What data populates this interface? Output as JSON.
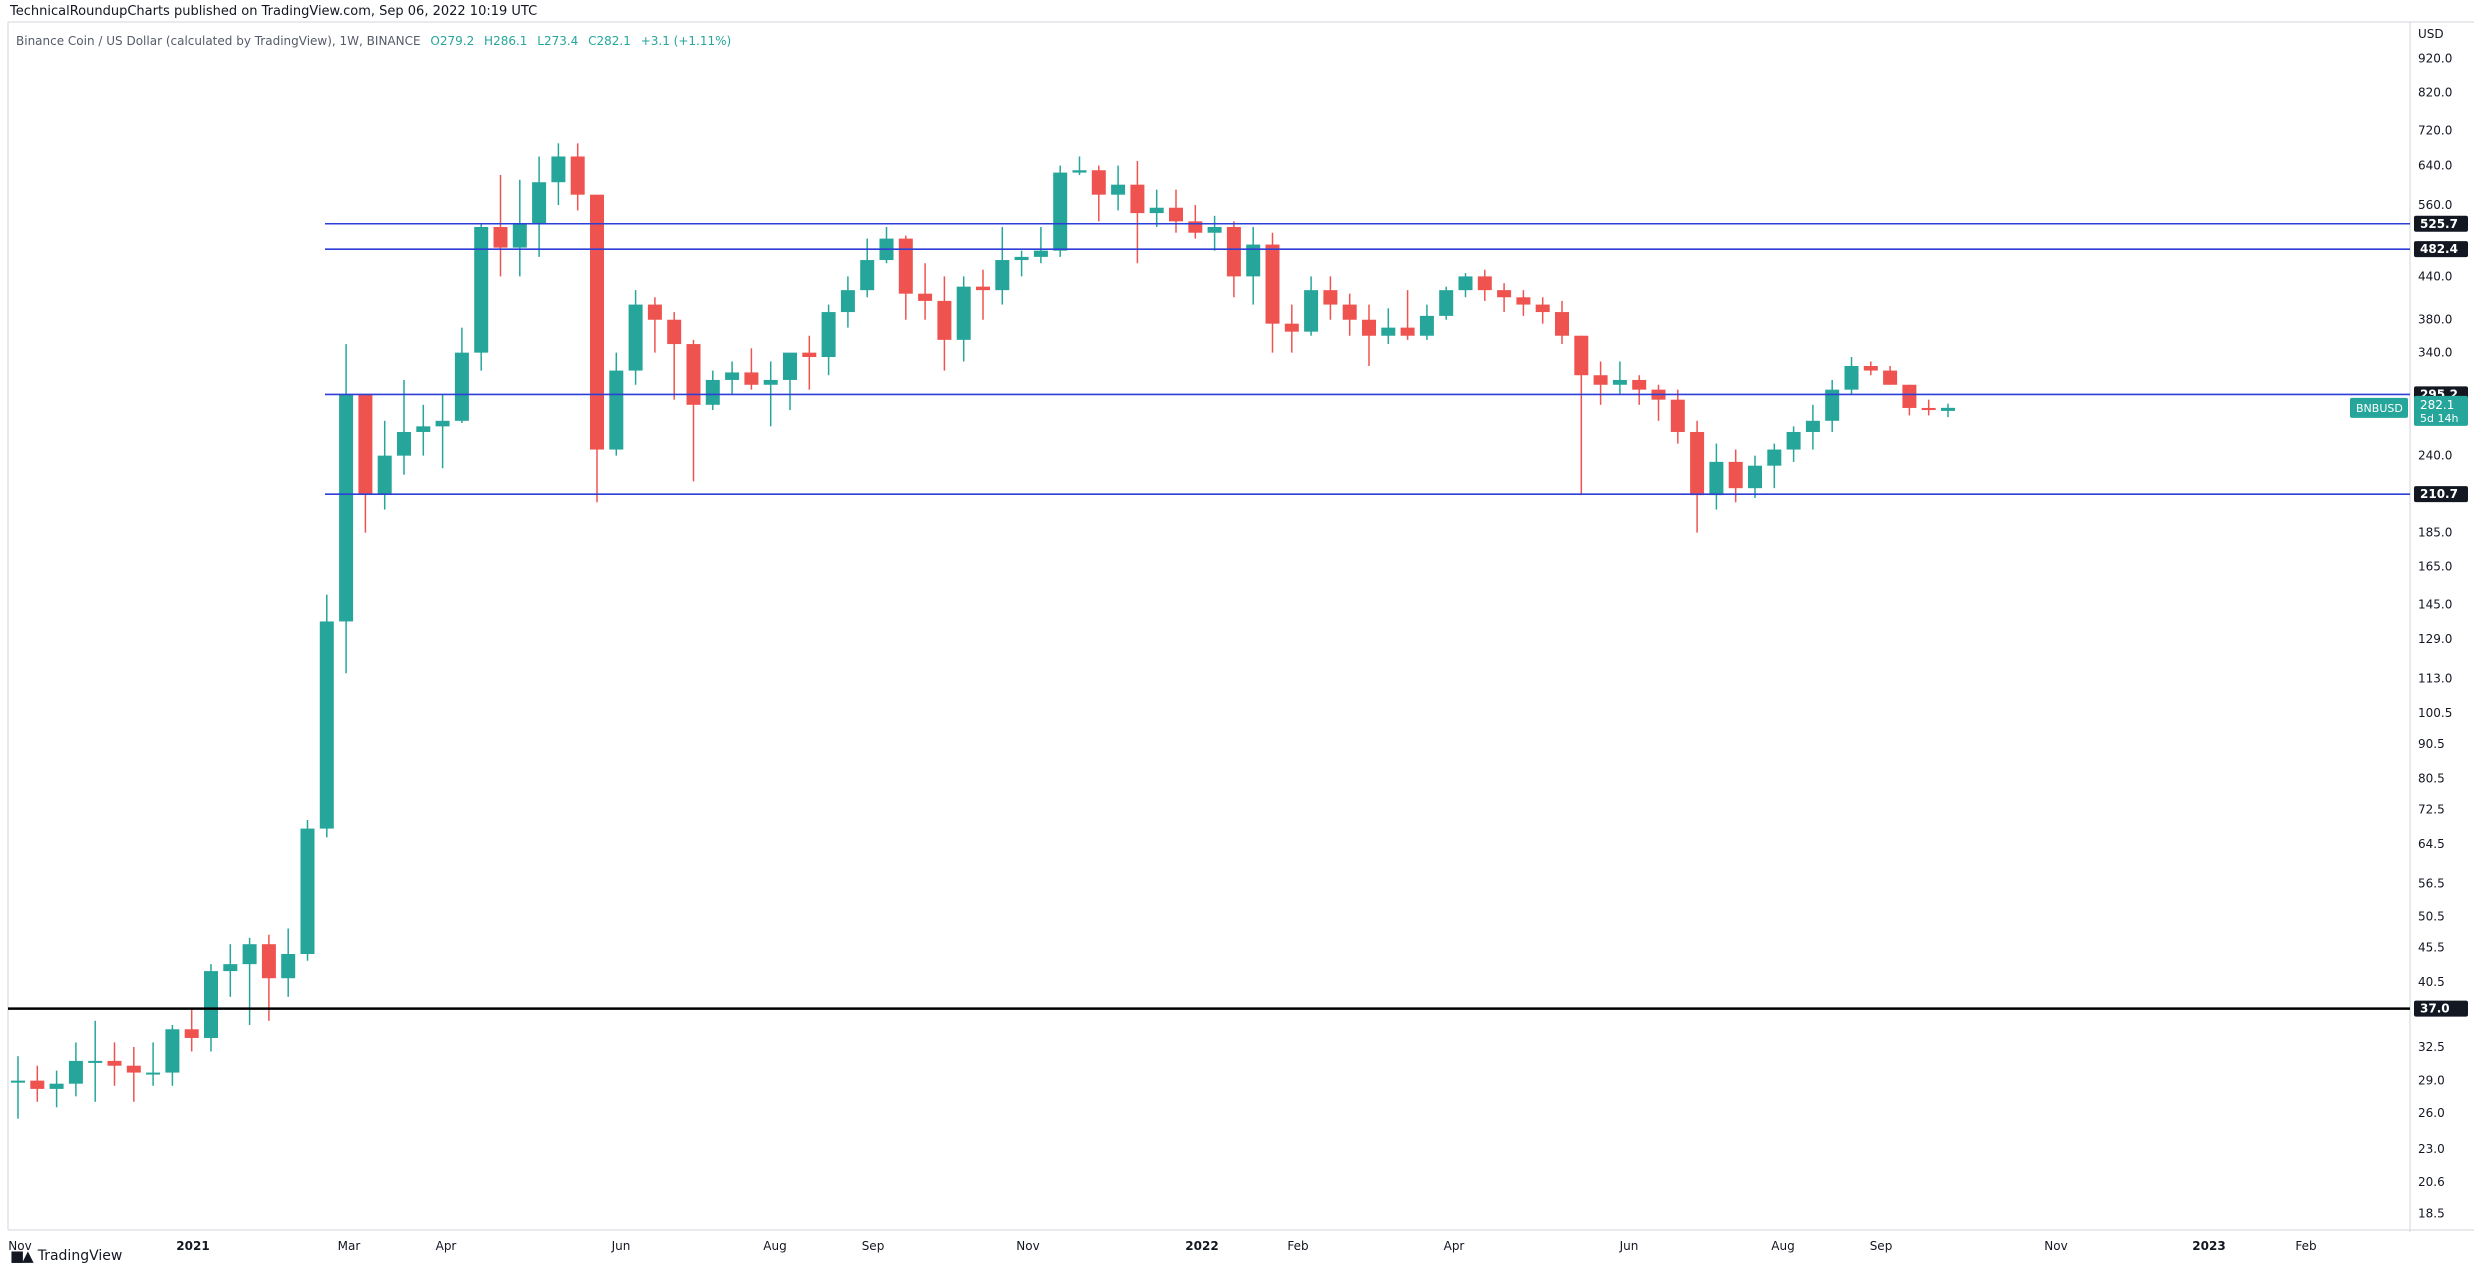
{
  "header": {
    "published_text": "TechnicalRoundupCharts published on TradingView.com, Sep 06, 2022 10:19 UTC"
  },
  "legend": {
    "symbol_text": "Binance Coin / US Dollar (calculated by TradingView), 1W, BINANCE",
    "open": "O279.2",
    "high": "H286.1",
    "low": "L273.4",
    "close": "C282.1",
    "change": "+3.1 (+1.11%)"
  },
  "footer": {
    "brand": "TradingView"
  },
  "colors": {
    "up": "#26a69a",
    "down": "#ef5350",
    "blue_level": "#2e3fd6",
    "black_level": "#000000",
    "ticker_badge": "#26a69a"
  },
  "chart_data": {
    "type": "candlestick",
    "scale": "log",
    "y_axis_unit": "USD",
    "y_tick_labels": [
      "920.0",
      "820.0",
      "720.0",
      "640.0",
      "560.0",
      "440.0",
      "380.0",
      "340.0",
      "240.0",
      "185.0",
      "165.0",
      "145.0",
      "129.0",
      "113.0",
      "100.5",
      "90.5",
      "80.5",
      "72.5",
      "64.5",
      "56.5",
      "50.5",
      "45.5",
      "40.5",
      "32.5",
      "29.0",
      "26.0",
      "23.0",
      "20.6",
      "18.5"
    ],
    "x_tick_labels": [
      "Nov",
      "2021",
      "Mar",
      "Apr",
      "Jun",
      "Aug",
      "Sep",
      "Nov",
      "2022",
      "Feb",
      "Apr",
      "Jun",
      "Aug",
      "Sep",
      "Nov",
      "2023",
      "Feb"
    ],
    "horizontal_levels": [
      {
        "value": 525.7,
        "label": "525.7",
        "color": "blue"
      },
      {
        "value": 482.4,
        "label": "482.4",
        "color": "blue"
      },
      {
        "value": 295.2,
        "label": "295.2",
        "color": "blue"
      },
      {
        "value": 210.7,
        "label": "210.7",
        "color": "blue"
      },
      {
        "value": 37.0,
        "label": "37.0",
        "color": "black"
      }
    ],
    "last_price": {
      "ticker": "BNBUSD",
      "value": "282.1",
      "countdown": "5d 14h"
    },
    "weekly_ohlc": [
      [
        28.8,
        31.5,
        25.5,
        29.0
      ],
      [
        29.0,
        30.5,
        27.0,
        28.2
      ],
      [
        28.2,
        30.0,
        26.5,
        28.7
      ],
      [
        28.7,
        33.0,
        27.5,
        31.0
      ],
      [
        31.0,
        35.5,
        27.0,
        31.0
      ],
      [
        31.0,
        33.0,
        28.5,
        30.5
      ],
      [
        30.5,
        32.5,
        27.0,
        29.8
      ],
      [
        29.8,
        33.0,
        28.5,
        29.8
      ],
      [
        29.8,
        35.0,
        28.5,
        34.5
      ],
      [
        34.5,
        37.0,
        32.0,
        33.5
      ],
      [
        33.5,
        43.0,
        32.0,
        42.0
      ],
      [
        42.0,
        46.0,
        38.5,
        43.0
      ],
      [
        43.0,
        47.0,
        35.0,
        46.0
      ],
      [
        46.0,
        47.5,
        35.5,
        41.0
      ],
      [
        41.0,
        48.5,
        38.5,
        44.5
      ],
      [
        44.5,
        70.0,
        43.5,
        68.0
      ],
      [
        68.0,
        150.0,
        66.0,
        137.0
      ],
      [
        137.0,
        350.0,
        115.0,
        295.0
      ],
      [
        295.0,
        295.0,
        185.0,
        210.7
      ],
      [
        210.7,
        270.0,
        200.0,
        240.0
      ],
      [
        240.0,
        310.0,
        225.0,
        260.0
      ],
      [
        260.0,
        285.0,
        240.0,
        265.0
      ],
      [
        265.0,
        295.0,
        230.0,
        270.0
      ],
      [
        270.0,
        370.0,
        268.0,
        340.0
      ],
      [
        340.0,
        525.0,
        320.0,
        520.0
      ],
      [
        520.0,
        620.0,
        440.0,
        485.0
      ],
      [
        485.0,
        610.0,
        440.0,
        525.0
      ],
      [
        525.0,
        660.0,
        470.0,
        605.0
      ],
      [
        605.0,
        690.0,
        560.0,
        660.0
      ],
      [
        660.0,
        690.0,
        550.0,
        580.0
      ],
      [
        580.0,
        580.0,
        205.0,
        245.0
      ],
      [
        245.0,
        340.0,
        240.0,
        320.0
      ],
      [
        320.0,
        420.0,
        305.0,
        400.0
      ],
      [
        400.0,
        410.0,
        340.0,
        380.0
      ],
      [
        380.0,
        390.0,
        290.0,
        350.0
      ],
      [
        350.0,
        355.0,
        220.0,
        285.0
      ],
      [
        285.0,
        320.0,
        280.0,
        310.0
      ],
      [
        310.0,
        330.0,
        295.0,
        318.0
      ],
      [
        318.0,
        345.0,
        300.0,
        305.0
      ],
      [
        305.0,
        330.0,
        265.0,
        310.0
      ],
      [
        310.0,
        330.0,
        280.0,
        340.0
      ],
      [
        340.0,
        360.0,
        300.0,
        335.0
      ],
      [
        335.0,
        400.0,
        315.0,
        390.0
      ],
      [
        390.0,
        440.0,
        370.0,
        420.0
      ],
      [
        420.0,
        500.0,
        410.0,
        465.0
      ],
      [
        465.0,
        520.0,
        460.0,
        500.0
      ],
      [
        500.0,
        505.0,
        380.0,
        415.0
      ],
      [
        415.0,
        460.0,
        380.0,
        405.0
      ],
      [
        405.0,
        440.0,
        320.0,
        355.0
      ],
      [
        355.0,
        440.0,
        330.0,
        425.0
      ],
      [
        425.0,
        450.0,
        380.0,
        420.0
      ],
      [
        420.0,
        520.0,
        400.0,
        465.0
      ],
      [
        465.0,
        480.0,
        440.0,
        470.0
      ],
      [
        470.0,
        520.0,
        460.0,
        480.0
      ],
      [
        480.0,
        640.0,
        470.0,
        625.0
      ],
      [
        625.0,
        660.0,
        620.0,
        630.0
      ],
      [
        630.0,
        640.0,
        530.0,
        580.0
      ],
      [
        580.0,
        640.0,
        550.0,
        600.0
      ],
      [
        600.0,
        650.0,
        460.0,
        545.0
      ],
      [
        545.0,
        590.0,
        520.0,
        555.0
      ],
      [
        555.0,
        590.0,
        510.0,
        530.0
      ],
      [
        530.0,
        560.0,
        500.0,
        510.0
      ],
      [
        510.0,
        540.0,
        480.0,
        520.0
      ],
      [
        520.0,
        530.0,
        410.0,
        440.0
      ],
      [
        440.0,
        520.0,
        400.0,
        490.0
      ],
      [
        490.0,
        510.0,
        340.0,
        375.0
      ],
      [
        375.0,
        400.0,
        340.0,
        365.0
      ],
      [
        365.0,
        440.0,
        360.0,
        420.0
      ],
      [
        420.0,
        440.0,
        380.0,
        400.0
      ],
      [
        400.0,
        415.0,
        360.0,
        380.0
      ],
      [
        380.0,
        400.0,
        325.0,
        360.0
      ],
      [
        360.0,
        395.0,
        350.0,
        370.0
      ],
      [
        370.0,
        420.0,
        355.0,
        360.0
      ],
      [
        360.0,
        400.0,
        355.0,
        385.0
      ],
      [
        385.0,
        425.0,
        380.0,
        420.0
      ],
      [
        420.0,
        445.0,
        410.0,
        440.0
      ],
      [
        440.0,
        450.0,
        405.0,
        420.0
      ],
      [
        420.0,
        430.0,
        390.0,
        410.0
      ],
      [
        410.0,
        420.0,
        385.0,
        400.0
      ],
      [
        400.0,
        410.0,
        375.0,
        390.0
      ],
      [
        390.0,
        405.0,
        350.0,
        360.0
      ],
      [
        360.0,
        360.0,
        210.0,
        315.0
      ],
      [
        315.0,
        330.0,
        285.0,
        305.0
      ],
      [
        305.0,
        330.0,
        295.0,
        310.0
      ],
      [
        310.0,
        315.0,
        285.0,
        300.0
      ],
      [
        300.0,
        305.0,
        270.0,
        290.0
      ],
      [
        290.0,
        300.0,
        250.0,
        260.0
      ],
      [
        260.0,
        270.0,
        185.0,
        210.0
      ],
      [
        210.0,
        250.0,
        200.0,
        235.0
      ],
      [
        235.0,
        245.0,
        205.0,
        215.0
      ],
      [
        215.0,
        240.0,
        208.0,
        232.0
      ],
      [
        232.0,
        250.0,
        215.0,
        245.0
      ],
      [
        245.0,
        265.0,
        235.0,
        260.0
      ],
      [
        260.0,
        285.0,
        245.0,
        270.0
      ],
      [
        270.0,
        310.0,
        260.0,
        300.0
      ],
      [
        300.0,
        335.0,
        295.0,
        325.0
      ],
      [
        325.0,
        330.0,
        315.0,
        320.0
      ],
      [
        320.0,
        325.0,
        305.0,
        305.0
      ],
      [
        305.0,
        305.0,
        275.0,
        282.0
      ],
      [
        282.0,
        290.0,
        275.0,
        280.0
      ],
      [
        279.2,
        286.1,
        273.4,
        282.1
      ]
    ]
  }
}
